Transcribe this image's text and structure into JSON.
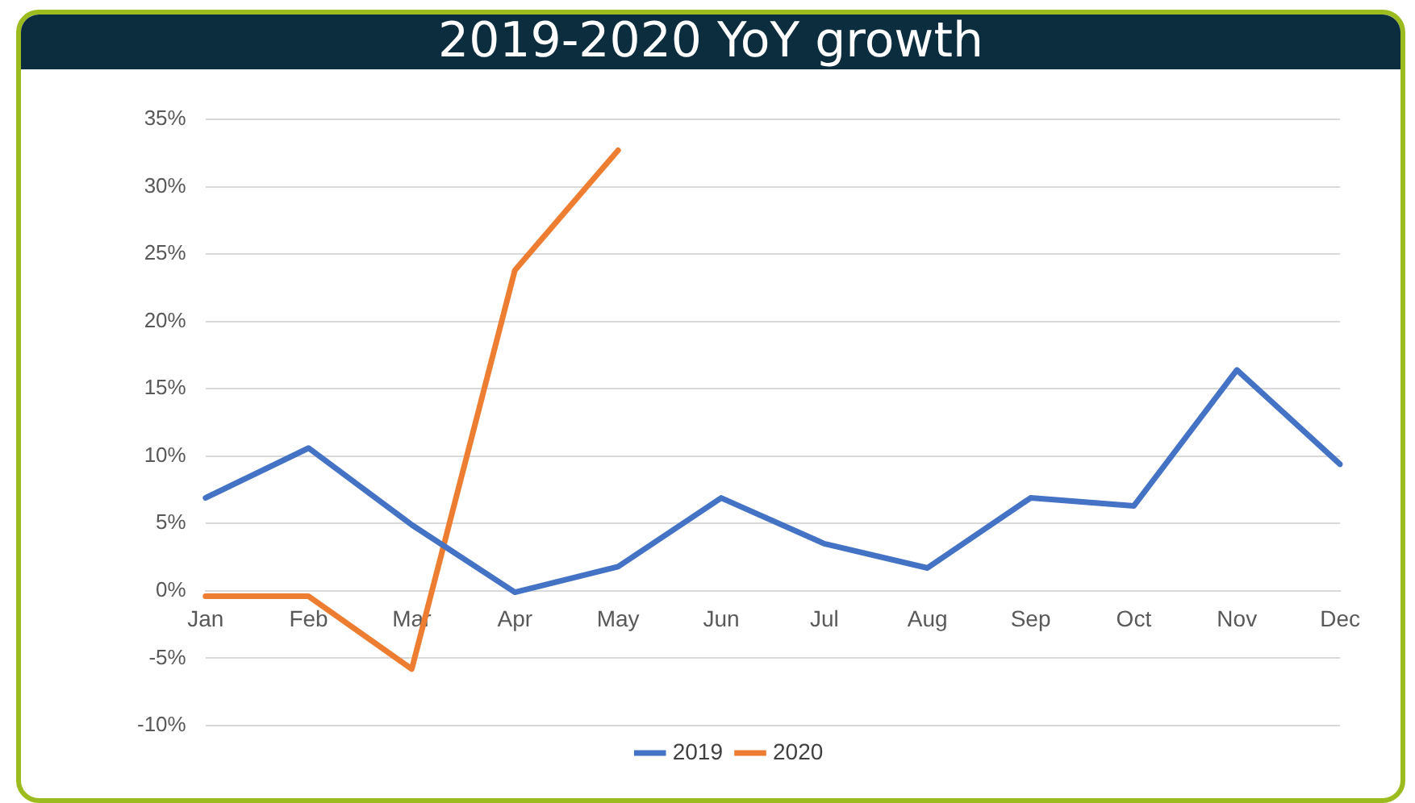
{
  "chart_data": {
    "type": "line",
    "title": "2019-2020 YoY growth",
    "categories": [
      "Jan",
      "Feb",
      "Mar",
      "Apr",
      "May",
      "Jun",
      "Jul",
      "Aug",
      "Sep",
      "Oct",
      "Nov",
      "Dec"
    ],
    "series": [
      {
        "name": "2019",
        "color": "#4472c4",
        "values": [
          6.9,
          10.6,
          4.9,
          -0.1,
          1.8,
          6.9,
          3.5,
          1.7,
          6.9,
          6.3,
          16.4,
          9.4
        ]
      },
      {
        "name": "2020",
        "color": "#ed7d31",
        "values": [
          -0.4,
          -0.4,
          -5.8,
          23.8,
          32.7,
          null,
          null,
          null,
          null,
          null,
          null,
          null
        ]
      }
    ],
    "ylim": [
      -10,
      35
    ],
    "yticks": [
      {
        "value": -10,
        "label": "-10%"
      },
      {
        "value": -5,
        "label": "-5%"
      },
      {
        "value": 0,
        "label": "0%"
      },
      {
        "value": 5,
        "label": "5%"
      },
      {
        "value": 10,
        "label": "10%"
      },
      {
        "value": 15,
        "label": "15%"
      },
      {
        "value": 20,
        "label": "20%"
      },
      {
        "value": 25,
        "label": "25%"
      },
      {
        "value": 30,
        "label": "30%"
      },
      {
        "value": 35,
        "label": "35%"
      }
    ],
    "grid": "y",
    "legend": "bottom",
    "marker": "none",
    "line_style": "solid"
  }
}
